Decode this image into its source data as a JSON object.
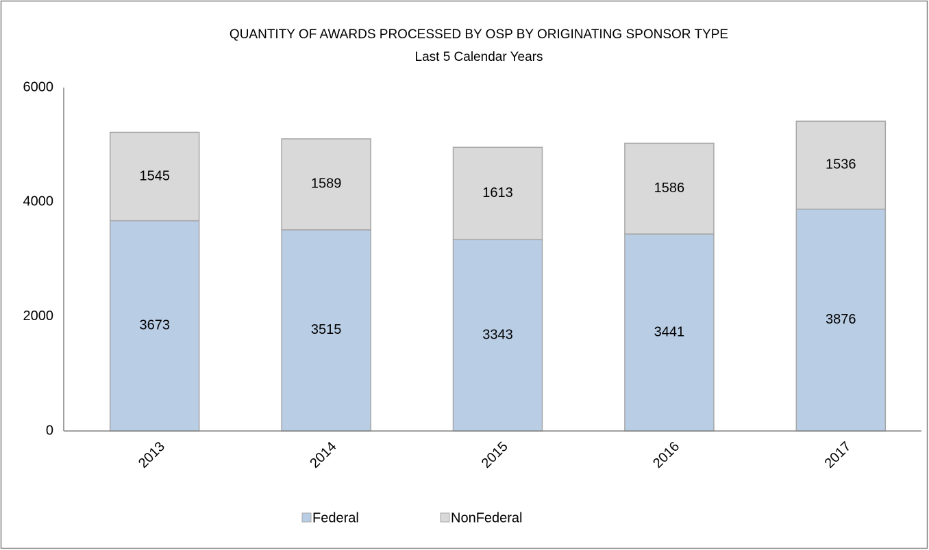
{
  "chart_data": {
    "type": "stacked_bar",
    "title": "QUANTITY OF AWARDS PROCESSED BY OSP BY ORIGINATING SPONSOR TYPE",
    "subtitle": "Last 5 Calendar Years",
    "categories": [
      "2013",
      "2014",
      "2015",
      "2016",
      "2017"
    ],
    "series": [
      {
        "name": "Federal",
        "color": "#b9cde5",
        "values": [
          3673,
          3515,
          3343,
          3441,
          3876
        ]
      },
      {
        "name": "NonFederal",
        "color": "#d9d9d9",
        "values": [
          1545,
          1589,
          1613,
          1586,
          1536
        ]
      }
    ],
    "ylim": [
      0,
      6000
    ],
    "yticks": [
      0,
      2000,
      4000,
      6000
    ],
    "grid": false,
    "legend": "bottom"
  }
}
